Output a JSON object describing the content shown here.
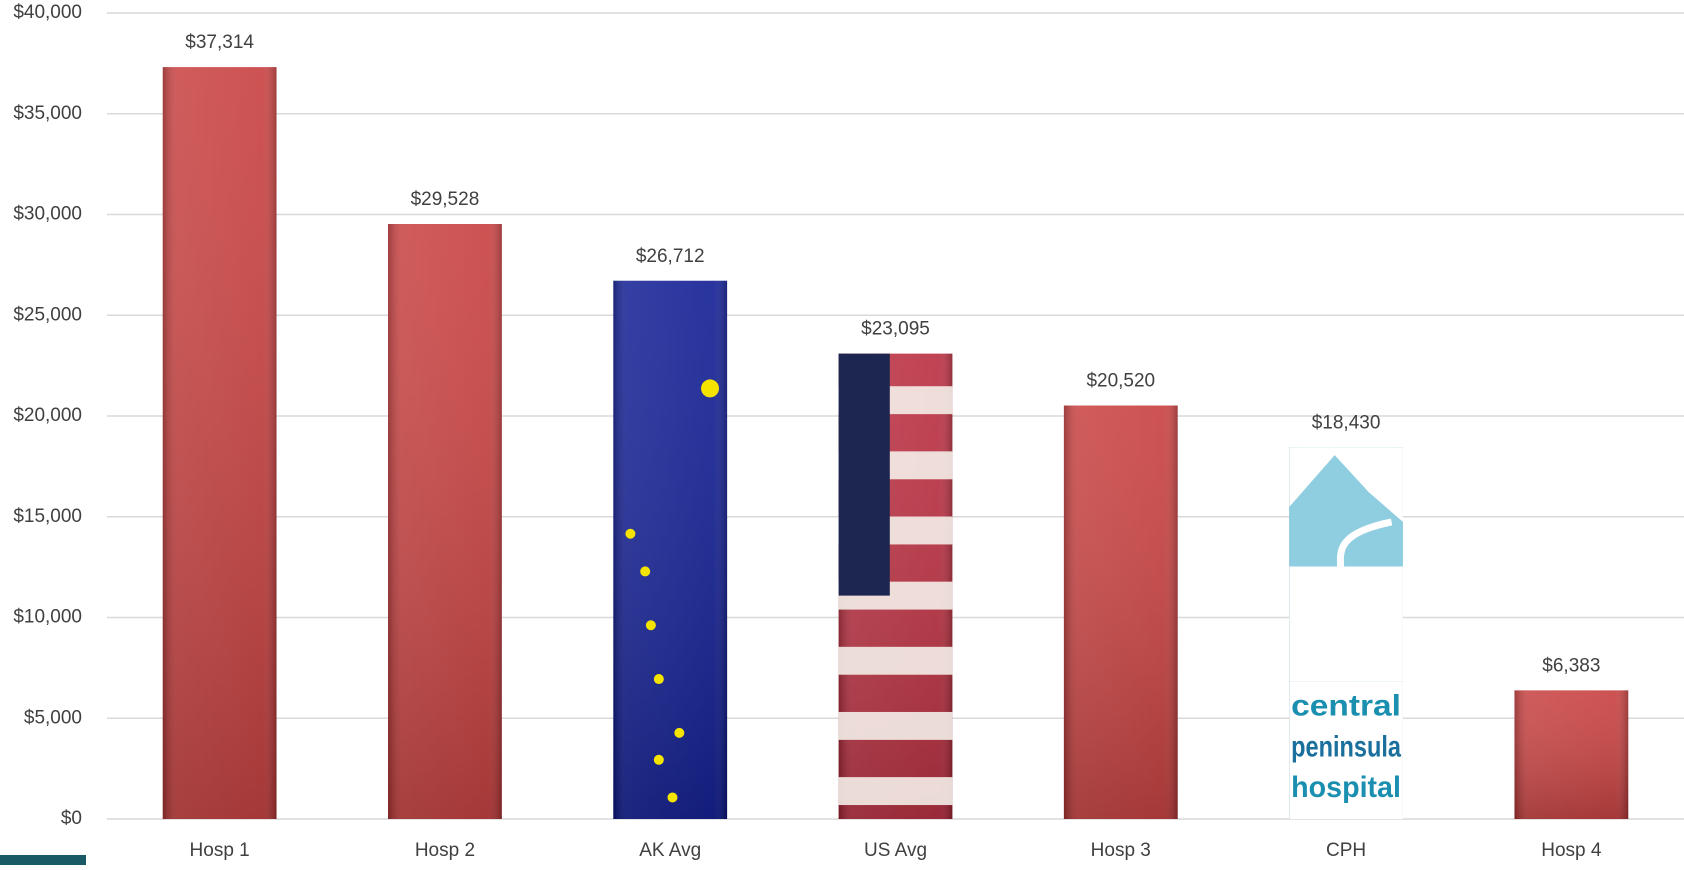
{
  "chart_data": {
    "type": "bar",
    "categories": [
      "Hosp 1",
      "Hosp 2",
      "AK Avg",
      "US Avg",
      "Hosp 3",
      "CPH",
      "Hosp 4"
    ],
    "values": [
      37314,
      29528,
      26712,
      23095,
      20520,
      18430,
      6383
    ],
    "value_labels": [
      "$37,314",
      "$29,528",
      "$26,712",
      "$23,095",
      "$20,520",
      "$18,430",
      "$6,383"
    ],
    "colors": [
      "#c63a3a",
      "#c63a3a",
      "#0a1790",
      "#b8283a",
      "#c63a3a",
      "#1a8fb0",
      "#c63a3a"
    ],
    "annotations": [
      "central",
      "peninsula",
      "hospital"
    ],
    "ylim": [
      0,
      40000
    ],
    "yticks": [
      {
        "value": 0,
        "label": "$0"
      },
      {
        "value": 5000,
        "label": "$5,000"
      },
      {
        "value": 10000,
        "label": "$10,000"
      },
      {
        "value": 15000,
        "label": "$15,000"
      },
      {
        "value": 20000,
        "label": "$20,000"
      },
      {
        "value": 25000,
        "label": "$25,000"
      },
      {
        "value": 30000,
        "label": "$30,000"
      },
      {
        "value": 35000,
        "label": "$35,000"
      },
      {
        "value": 40000,
        "label": "$40,000"
      }
    ],
    "grid": true
  }
}
